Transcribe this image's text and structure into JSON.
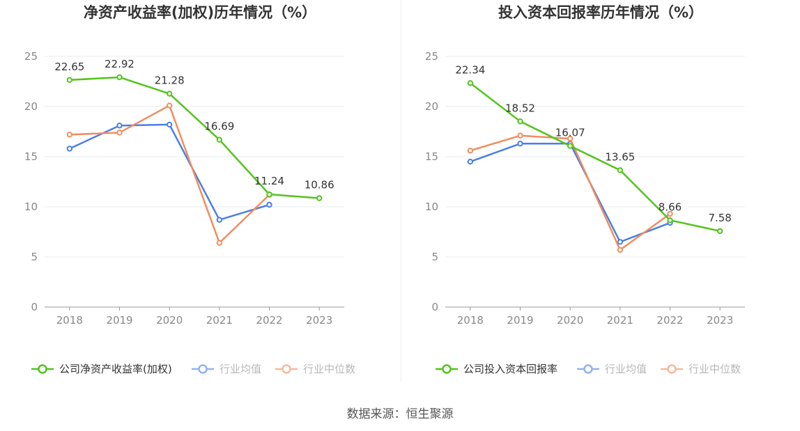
{
  "source_text": "数据来源：恒生聚源",
  "colors": {
    "company": "#52c41a",
    "avg": "#4a7fe6",
    "median": "#f08c5e",
    "grid": "#e8ebf2",
    "axis": "#999999"
  },
  "chart_data": [
    {
      "type": "line",
      "title": "净资产收益率(加权)历年情况（%）",
      "categories": [
        "2018",
        "2019",
        "2020",
        "2021",
        "2022",
        "2023"
      ],
      "ylim": [
        0,
        25
      ],
      "yticks": [
        "0",
        "5",
        "10",
        "15",
        "20",
        "25"
      ],
      "grid": true,
      "legend_position": "bottom",
      "series": [
        {
          "name": "公司净资产收益率(加权)",
          "key": "company",
          "values": [
            22.65,
            22.92,
            21.28,
            16.69,
            11.24,
            10.86
          ],
          "labels": [
            "22.65",
            "22.92",
            "21.28",
            "16.69",
            "11.24",
            "10.86"
          ]
        },
        {
          "name": "行业均值",
          "key": "avg",
          "values": [
            15.8,
            18.1,
            18.2,
            8.7,
            10.2,
            null
          ]
        },
        {
          "name": "行业中位数",
          "key": "median",
          "values": [
            17.2,
            17.4,
            20.1,
            6.4,
            11.2,
            null
          ]
        }
      ]
    },
    {
      "type": "line",
      "title": "投入资本回报率历年情况（%）",
      "categories": [
        "2018",
        "2019",
        "2020",
        "2021",
        "2022",
        "2023"
      ],
      "ylim": [
        0,
        25
      ],
      "yticks": [
        "0",
        "5",
        "10",
        "15",
        "20",
        "25"
      ],
      "grid": true,
      "legend_position": "bottom",
      "series": [
        {
          "name": "公司投入资本回报率",
          "key": "company",
          "values": [
            22.34,
            18.52,
            16.07,
            13.65,
            8.66,
            7.58
          ],
          "labels": [
            "22.34",
            "18.52",
            "16.07",
            "13.65",
            "8.66",
            "7.58"
          ]
        },
        {
          "name": "行业均值",
          "key": "avg",
          "values": [
            14.5,
            16.3,
            16.3,
            6.5,
            8.4,
            null
          ]
        },
        {
          "name": "行业中位数",
          "key": "median",
          "values": [
            15.6,
            17.1,
            16.8,
            5.7,
            9.3,
            null
          ]
        }
      ]
    }
  ]
}
